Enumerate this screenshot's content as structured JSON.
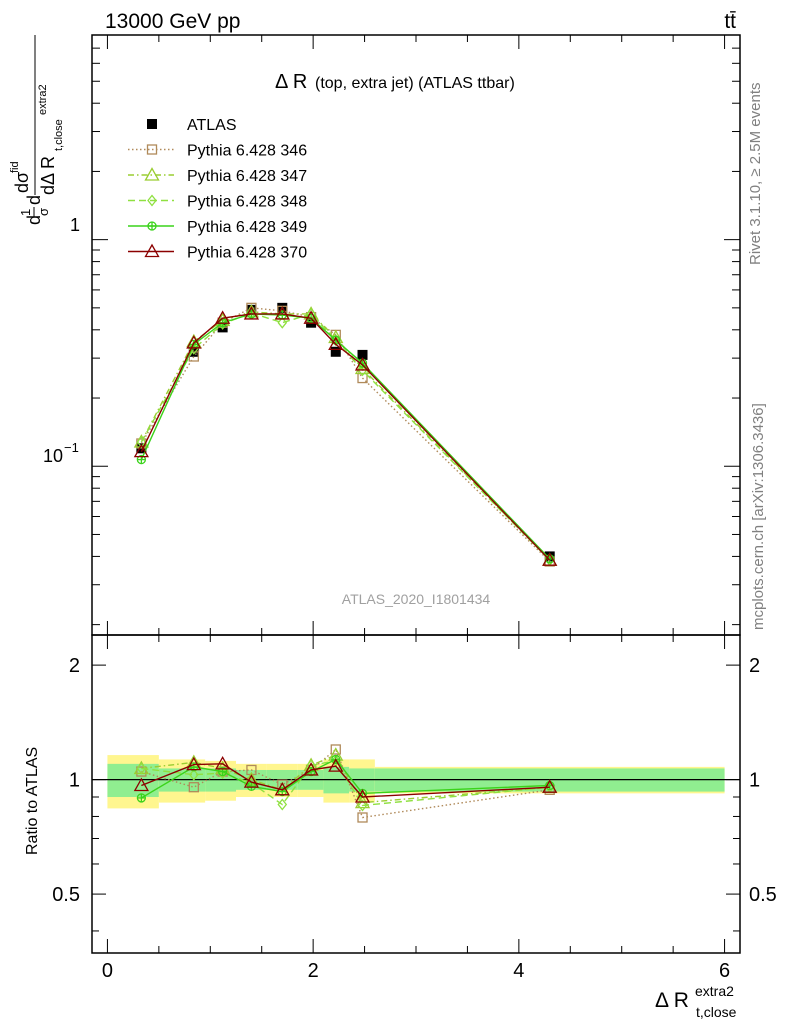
{
  "header": {
    "energy_label": "13000 GeV pp",
    "process_label": "tt̄",
    "rivet_label": "Rivet 3.1.10, ≥ 2.5M events",
    "mcplots_label": "mcplots.cern.ch [arXiv:1306.3436]",
    "analysis_id": "ATLAS_2020_I1801434"
  },
  "main_panel": {
    "title_main": "Δ R",
    "title_detail": "(top, extra jet) (ATLAS ttbar)",
    "ylabel": "1/σ dσ^fid / dΔ R_t,close^extra2",
    "y_scale": "log",
    "ylim": [
      0.018,
      8
    ],
    "y_tick_labels": [
      "1",
      "10",
      "−1"
    ]
  },
  "ratio_panel": {
    "ylabel": "Ratio to ATLAS",
    "ylim": [
      0.35,
      2.4
    ],
    "y_ticks": [
      0.5,
      1,
      2
    ],
    "y_tick_labels": [
      "0.5",
      "1",
      "2"
    ]
  },
  "xaxis": {
    "label_main": "Δ R",
    "label_sup": "extra2",
    "label_sub": "t,close",
    "xlim": [
      -0.15,
      6.15
    ],
    "ticks": [
      0,
      2,
      4,
      6
    ],
    "tick_labels": [
      "0",
      "2",
      "4",
      "6"
    ]
  },
  "chart_data": {
    "type": "scatter",
    "x": [
      0.33,
      0.84,
      1.12,
      1.4,
      1.7,
      1.98,
      2.22,
      2.48,
      4.3
    ],
    "bin_edges": [
      0.0,
      0.5,
      0.95,
      1.25,
      1.55,
      1.85,
      2.1,
      2.35,
      2.6,
      6.0
    ],
    "band_inner": [
      0.1,
      0.07,
      0.07,
      0.06,
      0.06,
      0.06,
      0.08,
      0.07,
      0.07
    ],
    "band_outer": [
      0.16,
      0.13,
      0.12,
      0.1,
      0.1,
      0.1,
      0.13,
      0.13,
      0.08
    ],
    "series": [
      {
        "name": "ATLAS",
        "values": [
          0.12,
          0.32,
          0.41,
          0.49,
          0.5,
          0.43,
          0.32,
          0.31,
          0.04
        ],
        "color": "#000000",
        "marker": "square-filled",
        "dash": "none"
      },
      {
        "name": "Pythia 6.428 346",
        "values": [
          0.126,
          0.305,
          0.43,
          0.5,
          0.485,
          0.455,
          0.38,
          0.245,
          0.038
        ],
        "color": "#b08a5a",
        "marker": "square-open",
        "dash": "1.5,2.5"
      },
      {
        "name": "Pythia 6.428 347",
        "values": [
          0.128,
          0.355,
          0.44,
          0.48,
          0.47,
          0.47,
          0.37,
          0.27,
          0.0385
        ],
        "color": "#9acd32",
        "marker": "triangle-open",
        "dash": "6,3,1.5,3"
      },
      {
        "name": "Pythia 6.428 348",
        "values": [
          0.128,
          0.33,
          0.425,
          0.475,
          0.43,
          0.47,
          0.36,
          0.265,
          0.0385
        ],
        "color": "#8fe040",
        "marker": "diamond-open",
        "dash": "7,4"
      },
      {
        "name": "Pythia 6.428 349",
        "values": [
          0.107,
          0.345,
          0.43,
          0.47,
          0.465,
          0.45,
          0.36,
          0.285,
          0.039
        ],
        "color": "#3ad31a",
        "marker": "circle-cross",
        "dash": "none"
      },
      {
        "name": "Pythia 6.428 370",
        "values": [
          0.116,
          0.35,
          0.45,
          0.47,
          0.47,
          0.45,
          0.345,
          0.28,
          0.0385
        ],
        "color": "#8b0000",
        "marker": "triangle-open",
        "dash": "none"
      }
    ],
    "ratio_series": [
      {
        "name": "Pythia 6.428 346",
        "values": [
          1.05,
          0.955,
          1.05,
          1.06,
          0.97,
          1.06,
          1.2,
          0.795,
          0.94
        ]
      },
      {
        "name": "Pythia 6.428 347",
        "values": [
          1.07,
          1.11,
          1.07,
          1.0,
          0.94,
          1.09,
          1.16,
          0.87,
          0.955
        ]
      },
      {
        "name": "Pythia 6.428 348",
        "values": [
          1.07,
          1.03,
          1.04,
          0.98,
          0.86,
          1.09,
          1.12,
          0.855,
          0.955
        ]
      },
      {
        "name": "Pythia 6.428 349",
        "values": [
          0.895,
          1.08,
          1.05,
          0.96,
          0.93,
          1.05,
          1.13,
          0.92,
          0.965
        ]
      },
      {
        "name": "Pythia 6.428 370",
        "values": [
          0.965,
          1.095,
          1.1,
          0.985,
          0.94,
          1.06,
          1.085,
          0.9,
          0.955
        ]
      }
    ]
  }
}
